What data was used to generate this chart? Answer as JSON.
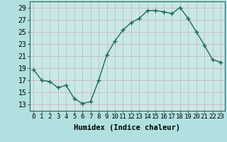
{
  "x": [
    0,
    1,
    2,
    3,
    4,
    5,
    6,
    7,
    8,
    9,
    10,
    11,
    12,
    13,
    14,
    15,
    16,
    17,
    18,
    19,
    20,
    21,
    22,
    23
  ],
  "y": [
    18.8,
    17.0,
    16.8,
    15.8,
    16.2,
    14.0,
    13.2,
    13.5,
    17.0,
    21.2,
    23.5,
    25.3,
    26.5,
    27.2,
    28.5,
    28.5,
    28.3,
    28.0,
    29.0,
    27.2,
    25.0,
    22.8,
    20.4,
    20.0
  ],
  "line_color": "#1a6b5a",
  "marker": "+",
  "markersize": 4,
  "linewidth": 1.0,
  "bg_color": "#b0e0e0",
  "plot_bg_color": "#c8e8e8",
  "grid_color": "#d0b8b8",
  "xlabel": "Humidex (Indice chaleur)",
  "xlim": [
    -0.5,
    23.5
  ],
  "ylim": [
    12,
    30
  ],
  "yticks": [
    13,
    15,
    17,
    19,
    21,
    23,
    25,
    27,
    29
  ],
  "xticks": [
    0,
    1,
    2,
    3,
    4,
    5,
    6,
    7,
    8,
    9,
    10,
    11,
    12,
    13,
    14,
    15,
    16,
    17,
    18,
    19,
    20,
    21,
    22,
    23
  ],
  "xlabel_fontsize": 7.5,
  "tick_fontsize": 6.5,
  "ytick_fontsize": 7
}
